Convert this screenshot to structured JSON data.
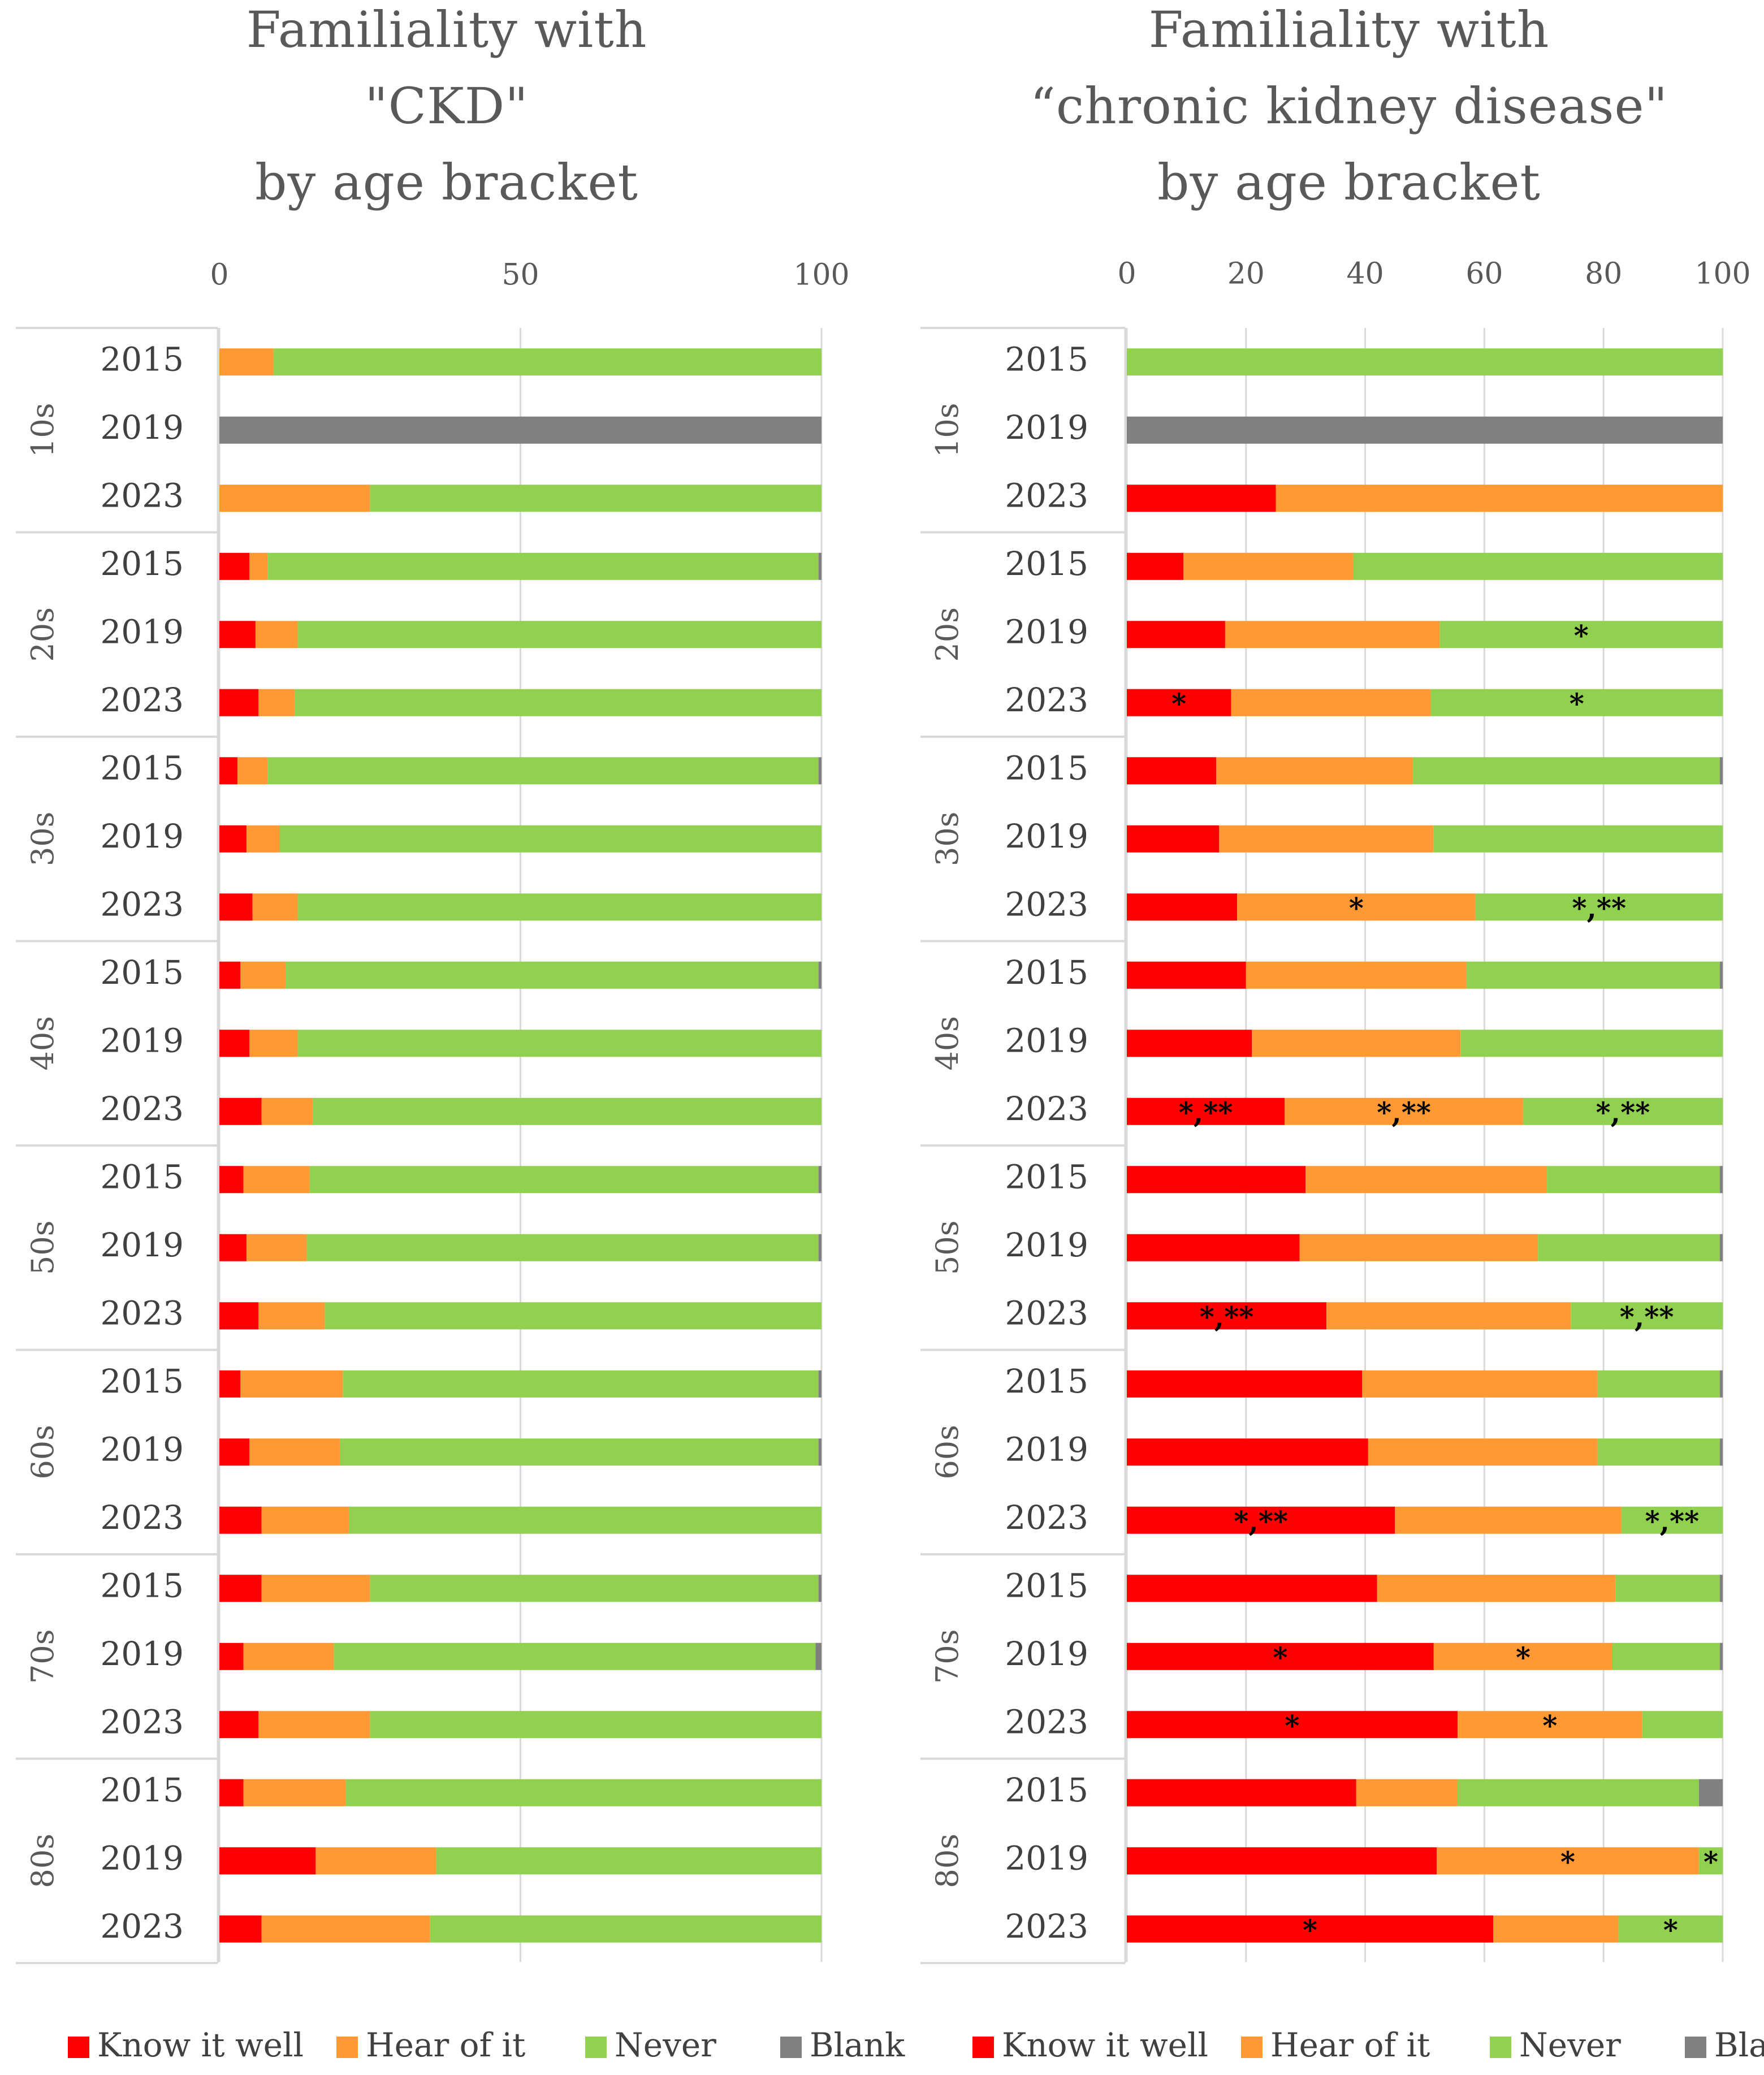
{
  "chart_data": [
    {
      "type": "bar",
      "orientation": "horizontal",
      "stacked": true,
      "title_lines": [
        "Familiality  with",
        "\"CKD\"",
        "by  age  bracket"
      ],
      "xlim": [
        0,
        100
      ],
      "xticks": [
        0,
        50,
        100
      ],
      "grid": true,
      "legend_position": "bottom",
      "series": [
        {
          "name": "Know it well",
          "color": "#ff0000"
        },
        {
          "name": "Hear of it",
          "color": "#ff9933"
        },
        {
          "name": "Never",
          "color": "#92d050"
        },
        {
          "name": "Blank",
          "color": "#808080"
        }
      ],
      "groups": [
        {
          "label": "10s",
          "rows": [
            {
              "year": "2015",
              "values": [
                0,
                9,
                91,
                0
              ],
              "marks": [
                "",
                "",
                "",
                ""
              ]
            },
            {
              "year": "2019",
              "values": [
                0,
                0,
                0,
                100
              ],
              "marks": [
                "",
                "",
                "",
                ""
              ]
            },
            {
              "year": "2023",
              "values": [
                0,
                25,
                75,
                0
              ],
              "marks": [
                "",
                "",
                "",
                ""
              ]
            }
          ]
        },
        {
          "label": "20s",
          "rows": [
            {
              "year": "2015",
              "values": [
                5,
                3,
                91.5,
                0.5
              ],
              "marks": [
                "",
                "",
                "",
                ""
              ]
            },
            {
              "year": "2019",
              "values": [
                6,
                7,
                87,
                0
              ],
              "marks": [
                "",
                "",
                "",
                ""
              ]
            },
            {
              "year": "2023",
              "values": [
                6.5,
                6,
                87.5,
                0
              ],
              "marks": [
                "",
                "",
                "",
                ""
              ]
            }
          ]
        },
        {
          "label": "30s",
          "rows": [
            {
              "year": "2015",
              "values": [
                3,
                5,
                91.5,
                0.5
              ],
              "marks": [
                "",
                "",
                "",
                ""
              ]
            },
            {
              "year": "2019",
              "values": [
                4.5,
                5.5,
                90,
                0
              ],
              "marks": [
                "",
                "",
                "",
                ""
              ]
            },
            {
              "year": "2023",
              "values": [
                5.5,
                7.5,
                87,
                0
              ],
              "marks": [
                "",
                "",
                "",
                ""
              ]
            }
          ]
        },
        {
          "label": "40s",
          "rows": [
            {
              "year": "2015",
              "values": [
                3.5,
                7.5,
                88.5,
                0.5
              ],
              "marks": [
                "",
                "",
                "",
                ""
              ]
            },
            {
              "year": "2019",
              "values": [
                5,
                8,
                87,
                0
              ],
              "marks": [
                "",
                "",
                "",
                ""
              ]
            },
            {
              "year": "2023",
              "values": [
                7,
                8.5,
                84.5,
                0
              ],
              "marks": [
                "",
                "",
                "",
                ""
              ]
            }
          ]
        },
        {
          "label": "50s",
          "rows": [
            {
              "year": "2015",
              "values": [
                4,
                11,
                84.5,
                0.5
              ],
              "marks": [
                "",
                "",
                "",
                ""
              ]
            },
            {
              "year": "2019",
              "values": [
                4.5,
                10,
                85,
                0.5
              ],
              "marks": [
                "",
                "",
                "",
                ""
              ]
            },
            {
              "year": "2023",
              "values": [
                6.5,
                11,
                82.5,
                0
              ],
              "marks": [
                "",
                "",
                "",
                ""
              ]
            }
          ]
        },
        {
          "label": "60s",
          "rows": [
            {
              "year": "2015",
              "values": [
                3.5,
                17,
                79,
                0.5
              ],
              "marks": [
                "",
                "",
                "",
                ""
              ]
            },
            {
              "year": "2019",
              "values": [
                5,
                15,
                79.5,
                0.5
              ],
              "marks": [
                "",
                "",
                "",
                ""
              ]
            },
            {
              "year": "2023",
              "values": [
                7,
                14.5,
                78.5,
                0
              ],
              "marks": [
                "",
                "",
                "",
                ""
              ]
            }
          ]
        },
        {
          "label": "70s",
          "rows": [
            {
              "year": "2015",
              "values": [
                7,
                18,
                74.5,
                0.5
              ],
              "marks": [
                "",
                "",
                "",
                ""
              ]
            },
            {
              "year": "2019",
              "values": [
                4,
                15,
                80,
                1
              ],
              "marks": [
                "",
                "",
                "",
                ""
              ]
            },
            {
              "year": "2023",
              "values": [
                6.5,
                18.5,
                75,
                0
              ],
              "marks": [
                "",
                "",
                "",
                ""
              ]
            }
          ]
        },
        {
          "label": "80s",
          "rows": [
            {
              "year": "2015",
              "values": [
                4,
                17,
                79,
                0
              ],
              "marks": [
                "",
                "",
                "",
                ""
              ]
            },
            {
              "year": "2019",
              "values": [
                16,
                20,
                64,
                0
              ],
              "marks": [
                "",
                "",
                "",
                ""
              ]
            },
            {
              "year": "2023",
              "values": [
                7,
                28,
                65,
                0
              ],
              "marks": [
                "",
                "",
                "",
                ""
              ]
            }
          ]
        }
      ]
    },
    {
      "type": "bar",
      "orientation": "horizontal",
      "stacked": true,
      "title_lines": [
        "Familiality  with",
        "“chronic  kidney  disease\"",
        "by  age  bracket"
      ],
      "xlim": [
        0,
        100
      ],
      "xticks": [
        0,
        20,
        40,
        60,
        80,
        100
      ],
      "grid": true,
      "legend_position": "bottom",
      "series": [
        {
          "name": "Know it well",
          "color": "#ff0000"
        },
        {
          "name": "Hear of it",
          "color": "#ff9933"
        },
        {
          "name": "Never",
          "color": "#92d050"
        },
        {
          "name": "Blank",
          "color": "#808080"
        }
      ],
      "groups": [
        {
          "label": "10s",
          "rows": [
            {
              "year": "2015",
              "values": [
                0,
                0,
                100,
                0
              ],
              "marks": [
                "",
                "",
                "",
                ""
              ]
            },
            {
              "year": "2019",
              "values": [
                0,
                0,
                0,
                100
              ],
              "marks": [
                "",
                "",
                "",
                ""
              ]
            },
            {
              "year": "2023",
              "values": [
                25,
                75,
                0,
                0
              ],
              "marks": [
                "",
                "",
                "",
                ""
              ]
            }
          ]
        },
        {
          "label": "20s",
          "rows": [
            {
              "year": "2015",
              "values": [
                9.5,
                28.5,
                62,
                0
              ],
              "marks": [
                "",
                "",
                "",
                ""
              ]
            },
            {
              "year": "2019",
              "values": [
                16.5,
                36,
                47.5,
                0
              ],
              "marks": [
                "",
                "",
                "*",
                ""
              ]
            },
            {
              "year": "2023",
              "values": [
                17.5,
                33.5,
                49,
                0
              ],
              "marks": [
                "*",
                "",
                "*",
                ""
              ]
            }
          ]
        },
        {
          "label": "30s",
          "rows": [
            {
              "year": "2015",
              "values": [
                15,
                33,
                51.5,
                0.5
              ],
              "marks": [
                "",
                "",
                "",
                ""
              ]
            },
            {
              "year": "2019",
              "values": [
                15.5,
                36,
                48.5,
                0
              ],
              "marks": [
                "",
                "",
                "",
                ""
              ]
            },
            {
              "year": "2023",
              "values": [
                18.5,
                40,
                41.5,
                0
              ],
              "marks": [
                "",
                "*",
                "*,**",
                ""
              ]
            }
          ]
        },
        {
          "label": "40s",
          "rows": [
            {
              "year": "2015",
              "values": [
                20,
                37,
                42.5,
                0.5
              ],
              "marks": [
                "",
                "",
                "",
                ""
              ]
            },
            {
              "year": "2019",
              "values": [
                21,
                35,
                44,
                0
              ],
              "marks": [
                "",
                "",
                "",
                ""
              ]
            },
            {
              "year": "2023",
              "values": [
                26.5,
                40,
                33.5,
                0
              ],
              "marks": [
                "*,**",
                "*,**",
                "*,**",
                ""
              ]
            }
          ]
        },
        {
          "label": "50s",
          "rows": [
            {
              "year": "2015",
              "values": [
                30,
                40.5,
                29,
                0.5
              ],
              "marks": [
                "",
                "",
                "",
                ""
              ]
            },
            {
              "year": "2019",
              "values": [
                29,
                40,
                30.5,
                0.5
              ],
              "marks": [
                "",
                "",
                "",
                ""
              ]
            },
            {
              "year": "2023",
              "values": [
                33.5,
                41,
                25.5,
                0
              ],
              "marks": [
                "*,**",
                "",
                "*,**",
                ""
              ]
            }
          ]
        },
        {
          "label": "60s",
          "rows": [
            {
              "year": "2015",
              "values": [
                39.5,
                39.5,
                20.5,
                0.5
              ],
              "marks": [
                "",
                "",
                "",
                ""
              ]
            },
            {
              "year": "2019",
              "values": [
                40.5,
                38.5,
                20.5,
                0.5
              ],
              "marks": [
                "",
                "",
                "",
                ""
              ]
            },
            {
              "year": "2023",
              "values": [
                45,
                38,
                17,
                0
              ],
              "marks": [
                "*,**",
                "",
                "*,**",
                ""
              ]
            }
          ]
        },
        {
          "label": "70s",
          "rows": [
            {
              "year": "2015",
              "values": [
                42,
                40,
                17.5,
                0.5
              ],
              "marks": [
                "",
                "",
                "",
                ""
              ]
            },
            {
              "year": "2019",
              "values": [
                51.5,
                30,
                18,
                0.5
              ],
              "marks": [
                "*",
                "*",
                "",
                ""
              ]
            },
            {
              "year": "2023",
              "values": [
                55.5,
                31,
                13.5,
                0
              ],
              "marks": [
                "*",
                "*",
                "",
                ""
              ]
            }
          ]
        },
        {
          "label": "80s",
          "rows": [
            {
              "year": "2015",
              "values": [
                38.5,
                17,
                40.5,
                4
              ],
              "marks": [
                "",
                "",
                "",
                ""
              ]
            },
            {
              "year": "2019",
              "values": [
                52,
                44,
                4,
                0
              ],
              "marks": [
                "",
                "*",
                "*",
                ""
              ]
            },
            {
              "year": "2023",
              "values": [
                61.5,
                21,
                17.5,
                0
              ],
              "marks": [
                "*",
                "",
                "*",
                ""
              ]
            }
          ]
        }
      ]
    }
  ]
}
